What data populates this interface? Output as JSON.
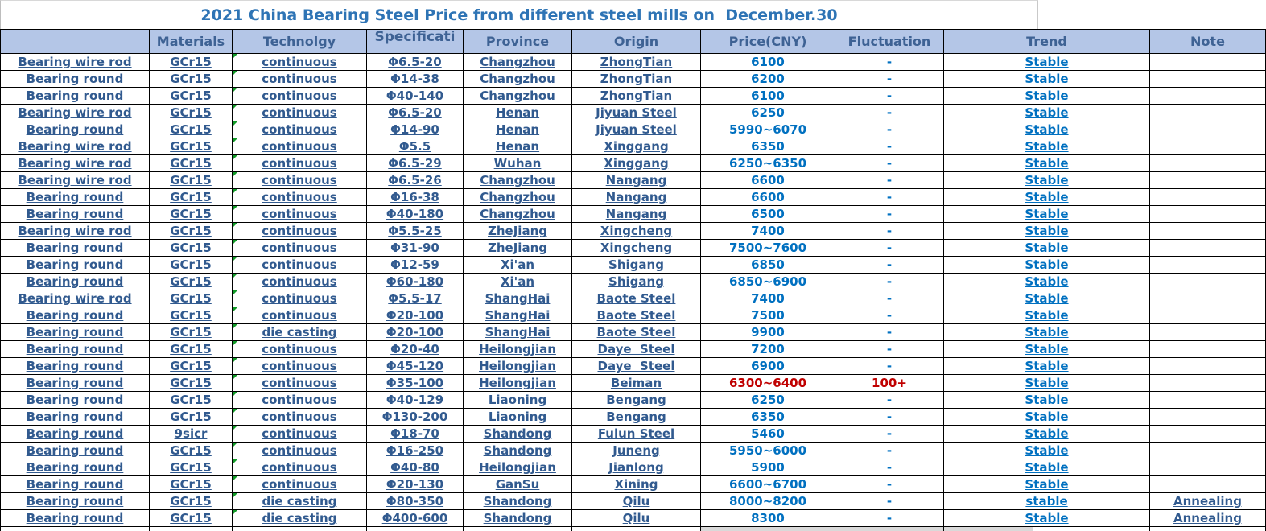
{
  "title": "2021 China Bearing Steel Price from different steel mills on  December.30",
  "colors": {
    "title_text": "#2E74B5",
    "header_bg": "#B4C6E7",
    "header_text": "#3E6294",
    "body_navy": "#315A8F",
    "price_blue": "#0070C0",
    "alert_red": "#C00000",
    "error_triangle_green": "#119B27",
    "grid_border": "#000000",
    "partial_row_gray": "#D9D9D9"
  },
  "table": {
    "headers": [
      "",
      "Materials",
      "Technolgy",
      "Specificati",
      "Province",
      "Origin",
      "Price(CNY)",
      "Fluctuation",
      "Trend",
      "Note"
    ],
    "rows": [
      {
        "product": "Bearing wire rod",
        "material": "GCr15",
        "technology": "continuous",
        "specification": "Φ6.5-20",
        "province": "Changzhou",
        "origin": "ZhongTian",
        "price": "6100",
        "fluctuation": "-",
        "trend": "Stable",
        "note": "",
        "alert": false
      },
      {
        "product": "Bearing round",
        "material": "GCr15",
        "technology": "continuous",
        "specification": "Φ14-38",
        "province": "Changzhou",
        "origin": "ZhongTian",
        "price": "6200",
        "fluctuation": "-",
        "trend": "Stable",
        "note": "",
        "alert": false
      },
      {
        "product": "Bearing round",
        "material": "GCr15",
        "technology": "continuous",
        "specification": "Φ40-140",
        "province": "Changzhou",
        "origin": "ZhongTian",
        "price": "6100",
        "fluctuation": "-",
        "trend": "Stable",
        "note": "",
        "alert": false
      },
      {
        "product": "Bearing wire rod",
        "material": "GCr15",
        "technology": "continuous",
        "specification": "Φ6.5-20",
        "province": "Henan",
        "origin": "Jiyuan Steel",
        "price": "6250",
        "fluctuation": "-",
        "trend": "Stable",
        "note": "",
        "alert": false
      },
      {
        "product": "Bearing round",
        "material": "GCr15",
        "technology": "continuous",
        "specification": "Φ14-90",
        "province": "Henan",
        "origin": "Jiyuan Steel",
        "price": "5990~6070",
        "fluctuation": "-",
        "trend": "Stable",
        "note": "",
        "alert": false
      },
      {
        "product": "Bearing wire rod",
        "material": "GCr15",
        "technology": "continuous",
        "specification": "Φ5.5",
        "province": "Henan",
        "origin": "Xinggang",
        "price": "6350",
        "fluctuation": "-",
        "trend": "Stable",
        "note": "",
        "alert": false
      },
      {
        "product": "Bearing wire rod",
        "material": "GCr15",
        "technology": "continuous",
        "specification": "Φ6.5-29",
        "province": "Wuhan",
        "origin": "Xinggang",
        "price": "6250~6350",
        "fluctuation": "-",
        "trend": "Stable",
        "note": "",
        "alert": false
      },
      {
        "product": "Bearing wire rod",
        "material": "GCr15",
        "technology": "continuous",
        "specification": "Φ6.5-26",
        "province": "Changzhou",
        "origin": "Nangang",
        "price": "6600",
        "fluctuation": "-",
        "trend": "Stable",
        "note": "",
        "alert": false
      },
      {
        "product": "Bearing round",
        "material": "GCr15",
        "technology": "continuous",
        "specification": "Φ16-38",
        "province": "Changzhou",
        "origin": "Nangang",
        "price": "6600",
        "fluctuation": "-",
        "trend": "Stable",
        "note": "",
        "alert": false
      },
      {
        "product": "Bearing round",
        "material": "GCr15",
        "technology": "continuous",
        "specification": "Φ40-180",
        "province": "Changzhou",
        "origin": "Nangang",
        "price": "6500",
        "fluctuation": "-",
        "trend": "Stable",
        "note": "",
        "alert": false
      },
      {
        "product": "Bearing wire rod",
        "material": "GCr15",
        "technology": "continuous",
        "specification": "Φ5.5-25",
        "province": "ZheJiang",
        "origin": "Xingcheng",
        "price": "7400",
        "fluctuation": "-",
        "trend": "Stable",
        "note": "",
        "alert": false
      },
      {
        "product": "Bearing round",
        "material": "GCr15",
        "technology": "continuous",
        "specification": "Φ31-90",
        "province": "ZheJiang",
        "origin": "Xingcheng",
        "price": "7500~7600",
        "fluctuation": "-",
        "trend": "Stable",
        "note": "",
        "alert": false
      },
      {
        "product": "Bearing round",
        "material": "GCr15",
        "technology": "continuous",
        "specification": "Φ12-59",
        "province": "Xi'an",
        "origin": "Shigang",
        "price": "6850",
        "fluctuation": "-",
        "trend": "Stable",
        "note": "",
        "alert": false
      },
      {
        "product": "Bearing round",
        "material": "GCr15",
        "technology": "continuous",
        "specification": "Φ60-180",
        "province": "Xi'an",
        "origin": "Shigang",
        "price": "6850~6900",
        "fluctuation": "-",
        "trend": "Stable",
        "note": "",
        "alert": false
      },
      {
        "product": "Bearing wire rod",
        "material": "GCr15",
        "technology": "continuous",
        "specification": "Φ5.5-17",
        "province": "ShangHai",
        "origin": "Baote Steel",
        "price": "7400",
        "fluctuation": "-",
        "trend": "Stable",
        "note": "",
        "alert": false
      },
      {
        "product": "Bearing round",
        "material": "GCr15",
        "technology": "continuous",
        "specification": "Φ20-100",
        "province": "ShangHai",
        "origin": "Baote Steel",
        "price": "7500",
        "fluctuation": "-",
        "trend": "Stable",
        "note": "",
        "alert": false
      },
      {
        "product": "Bearing round",
        "material": "GCr15",
        "technology": "die casting",
        "specification": "Φ20-100",
        "province": "ShangHai",
        "origin": "Baote Steel",
        "price": "9900",
        "fluctuation": "-",
        "trend": "Stable",
        "note": "",
        "alert": false
      },
      {
        "product": "Bearing round",
        "material": "GCr15",
        "technology": "continuous",
        "specification": "Φ20-40",
        "province": "Heilongjian",
        "origin": "Daye  Steel",
        "price": "7200",
        "fluctuation": "-",
        "trend": "Stable",
        "note": "",
        "alert": false
      },
      {
        "product": "Bearing round",
        "material": "GCr15",
        "technology": "continuous",
        "specification": "Φ45-120",
        "province": "Heilongjian",
        "origin": "Daye  Steel",
        "price": "6900",
        "fluctuation": "-",
        "trend": "Stable",
        "note": "",
        "alert": false
      },
      {
        "product": "Bearing round",
        "material": "GCr15",
        "technology": "continuous",
        "specification": "Φ35-100",
        "province": "Heilongjian",
        "origin": "Beiman",
        "price": "6300~6400",
        "fluctuation": "100+",
        "trend": "Stable",
        "note": "",
        "alert": true
      },
      {
        "product": "Bearing round",
        "material": "GCr15",
        "technology": "continuous",
        "specification": "Φ40-129",
        "province": "Liaoning",
        "origin": "Bengang",
        "price": "6250",
        "fluctuation": "-",
        "trend": "Stable",
        "note": "",
        "alert": false
      },
      {
        "product": "Bearing round",
        "material": "GCr15",
        "technology": "continuous",
        "specification": "Φ130-200",
        "province": "Liaoning",
        "origin": "Bengang",
        "price": "6350",
        "fluctuation": "-",
        "trend": "Stable",
        "note": "",
        "alert": false
      },
      {
        "product": "Bearing round",
        "material": "9sicr",
        "technology": "continuous",
        "specification": "Φ18-70",
        "province": "Shandong",
        "origin": "Fulun Steel",
        "price": "5460",
        "fluctuation": "-",
        "trend": "Stable",
        "note": "",
        "alert": false
      },
      {
        "product": "Bearing round",
        "material": "GCr15",
        "technology": "continuous",
        "specification": "Φ16-250",
        "province": "Shandong",
        "origin": "Juneng",
        "price": "5950~6000",
        "fluctuation": "-",
        "trend": "Stable",
        "note": "",
        "alert": false
      },
      {
        "product": "Bearing round",
        "material": "GCr15",
        "technology": "continuous",
        "specification": "Φ40-80",
        "province": "Heilongjian",
        "origin": "Jianlong",
        "price": "5900",
        "fluctuation": "-",
        "trend": "Stable",
        "note": "",
        "alert": false
      },
      {
        "product": "Bearing round",
        "material": "GCr15",
        "technology": "continuous",
        "specification": "Φ20-130",
        "province": "GanSu",
        "origin": "Xining",
        "price": "6600~6700",
        "fluctuation": "-",
        "trend": "Stable",
        "note": "",
        "alert": false
      },
      {
        "product": "Bearing round",
        "material": "GCr15",
        "technology": "die casting",
        "specification": "Φ80-350",
        "province": "Shandong",
        "origin": "Qilu",
        "price": "8000~8200",
        "fluctuation": "-",
        "trend": "stable",
        "note": "Annealing",
        "alert": false
      },
      {
        "product": "Bearing round",
        "material": "GCr15",
        "technology": "die casting",
        "specification": "Φ400-600",
        "province": "Shandong",
        "origin": "Qilu",
        "price": "8300",
        "fluctuation": "-",
        "trend": "Stable",
        "note": "Annealing",
        "alert": false
      }
    ]
  }
}
